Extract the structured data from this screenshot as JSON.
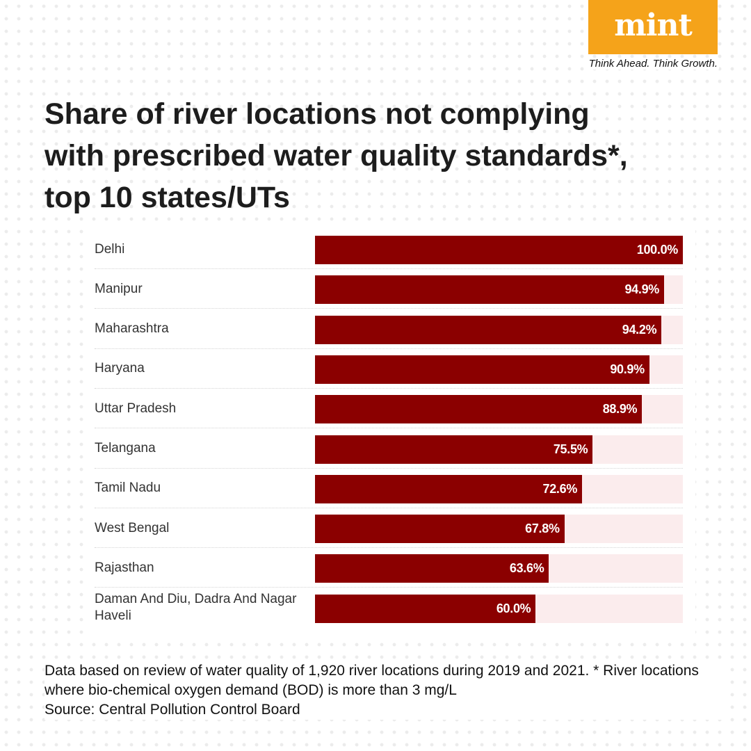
{
  "brand": {
    "logo_text": "mint",
    "tagline": "Think Ahead. Think Growth.",
    "logo_color": "#f5a31a"
  },
  "title": "Share of river locations not complying\nwith prescribed water quality standards*,\ntop 10 states/UTs",
  "chart_data": {
    "type": "bar",
    "orientation": "horizontal",
    "title": "Share of river locations not complying with prescribed water quality standards*, top 10 states/UTs",
    "categories": [
      "Delhi",
      "Manipur",
      "Maharashtra",
      "Haryana",
      "Uttar Pradesh",
      "Telangana",
      "Tamil Nadu",
      "West Bengal",
      "Rajasthan",
      "Daman And Diu, Dadra And Nagar Haveli"
    ],
    "values": [
      100.0,
      94.9,
      94.2,
      90.9,
      88.9,
      75.5,
      72.6,
      67.8,
      63.6,
      60.0
    ],
    "value_labels": [
      "100.0%",
      "94.9%",
      "94.2%",
      "90.9%",
      "88.9%",
      "75.5%",
      "72.6%",
      "67.8%",
      "63.6%",
      "60.0%"
    ],
    "xlim": [
      0,
      100
    ],
    "grid": false,
    "bar_color": "#8b0000",
    "track_color": "#fbeced"
  },
  "footnote": {
    "note": "Data based on review of water quality of 1,920 river locations during 2019 and 2021. * River locations where bio-chemical oxygen demand (BOD) is more than 3 mg/L",
    "source": "Source: Central Pollution Control Board"
  }
}
